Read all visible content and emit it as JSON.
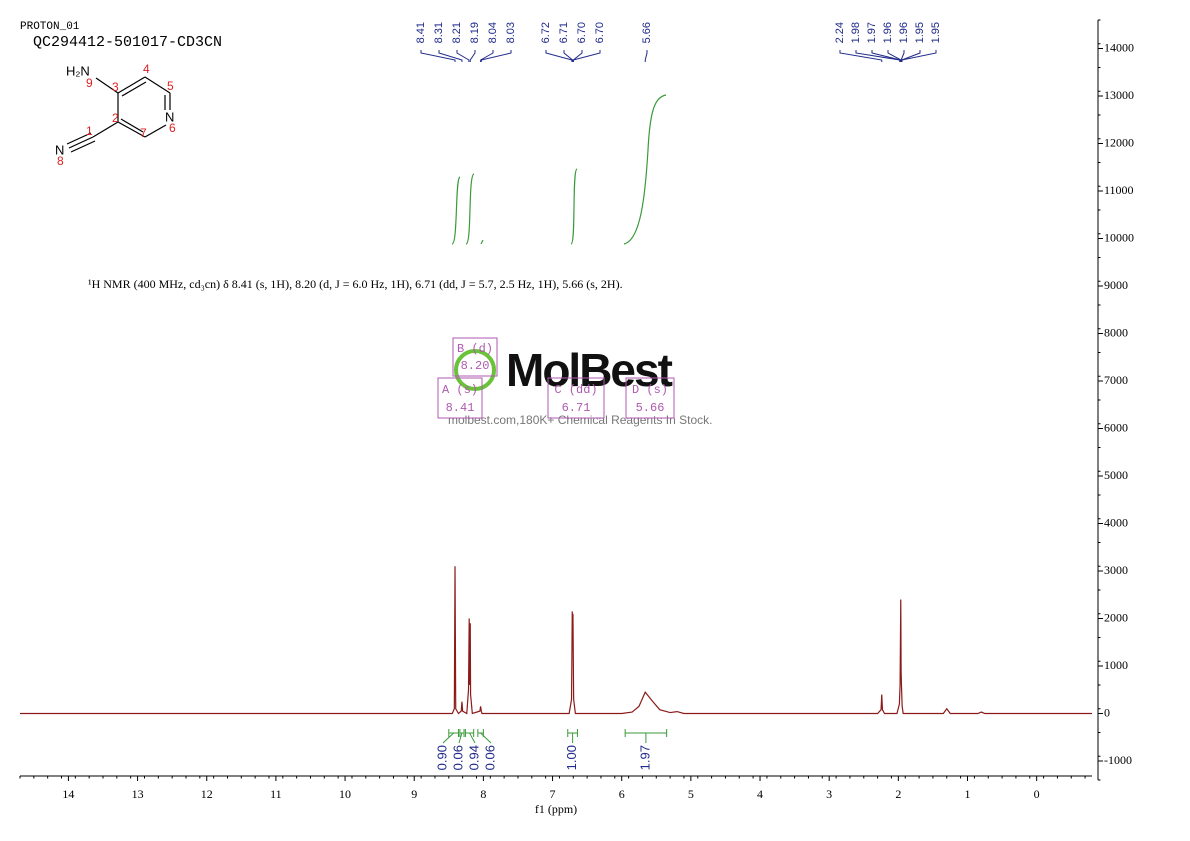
{
  "header": {
    "experiment": "PROTON_01",
    "sample": "QC294412-501017-CD3CN"
  },
  "structure": {
    "amine": "H₂N",
    "ring_n": "N",
    "nitrile_n": "N",
    "locants": [
      9,
      3,
      4,
      5,
      6,
      2,
      7,
      1,
      8
    ]
  },
  "description": "¹H NMR (400 MHz, cd₃cn) δ 8.41 (s, 1H), 8.20 (d, J = 6.0 Hz, 1H), 6.71 (dd, J = 5.7, 2.5 Hz, 1H), 5.66 (s, 2H).",
  "multiplets": [
    {
      "name": "B (d)",
      "shift": {
        "value": 8.2,
        "label": "8.20"
      }
    },
    {
      "name": "A (s)",
      "shift": 8.41
    },
    {
      "name": "C (dd)",
      "shift": 6.71
    },
    {
      "name": "D (s)",
      "shift": 5.66
    }
  ],
  "watermark": {
    "brand": "MolBest",
    "tagline": "molbest.com,180K+ Chemical Reagents In Stock."
  },
  "chart_data": {
    "type": "line",
    "x_label": "f1 (ppm)",
    "xlim": [
      14.7,
      -0.8
    ],
    "xticks": [
      14,
      13,
      12,
      11,
      10,
      9,
      8,
      7,
      6,
      5,
      4,
      3,
      2,
      1,
      0
    ],
    "ylim": [
      -1400,
      14600
    ],
    "yticks": [
      14000,
      13000,
      12000,
      11000,
      10000,
      9000,
      8000,
      7000,
      6000,
      5000,
      4000,
      3000,
      2000,
      1000,
      0,
      -1000
    ],
    "series": [
      {
        "name": "spectrum",
        "color": "#8b1a1a",
        "x": [
          14.7,
          8.6,
          8.45,
          8.42,
          8.41,
          8.4,
          8.36,
          8.32,
          8.31,
          8.3,
          8.24,
          8.215,
          8.205,
          8.2,
          8.19,
          8.185,
          8.16,
          8.05,
          8.04,
          8.03,
          8.02,
          6.76,
          6.725,
          6.715,
          6.71,
          6.705,
          6.695,
          6.67,
          6.0,
          5.85,
          5.75,
          5.66,
          5.55,
          5.45,
          5.3,
          5.2,
          5.1,
          2.3,
          2.25,
          2.24,
          2.23,
          2.2,
          2.02,
          1.985,
          1.975,
          1.965,
          1.96,
          1.955,
          1.945,
          1.93,
          1.35,
          1.3,
          1.25,
          0.85,
          0.8,
          0.75,
          -0.8
        ],
        "values": [
          0,
          0,
          0,
          100,
          3100,
          100,
          0,
          50,
          250,
          50,
          0,
          500,
          2000,
          600,
          1900,
          400,
          0,
          50,
          150,
          50,
          0,
          0,
          300,
          2150,
          1900,
          2100,
          300,
          0,
          0,
          30,
          150,
          450,
          250,
          80,
          20,
          40,
          0,
          0,
          80,
          400,
          80,
          0,
          0,
          200,
          600,
          2400,
          900,
          600,
          150,
          0,
          0,
          100,
          0,
          0,
          30,
          0,
          0
        ]
      }
    ],
    "peak_labels": [
      8.41,
      8.31,
      8.21,
      8.19,
      8.04,
      8.03,
      6.72,
      6.71,
      {
        "value": 6.7,
        "label": "6.70"
      },
      {
        "value": 6.7,
        "label": "6.70"
      },
      5.66,
      2.24,
      1.98,
      1.97,
      1.96,
      1.96,
      1.95,
      1.95
    ],
    "peak_label_color": "#1f2a8a",
    "integrals": {
      "color": "#3a9a3a",
      "ranges": [
        [
          8.5,
          8.36
        ],
        [
          8.34,
          8.28
        ],
        [
          8.26,
          8.14
        ],
        [
          8.08,
          8.0
        ],
        [
          6.78,
          6.64
        ],
        [
          5.95,
          5.35
        ]
      ],
      "values": [
        0.9,
        0.06,
        0.94,
        0.06,
        1,
        1.97
      ],
      "value_labels": [
        "0.90",
        "0.06",
        "0.94",
        "0.06",
        "1.00",
        "1.97"
      ]
    }
  }
}
